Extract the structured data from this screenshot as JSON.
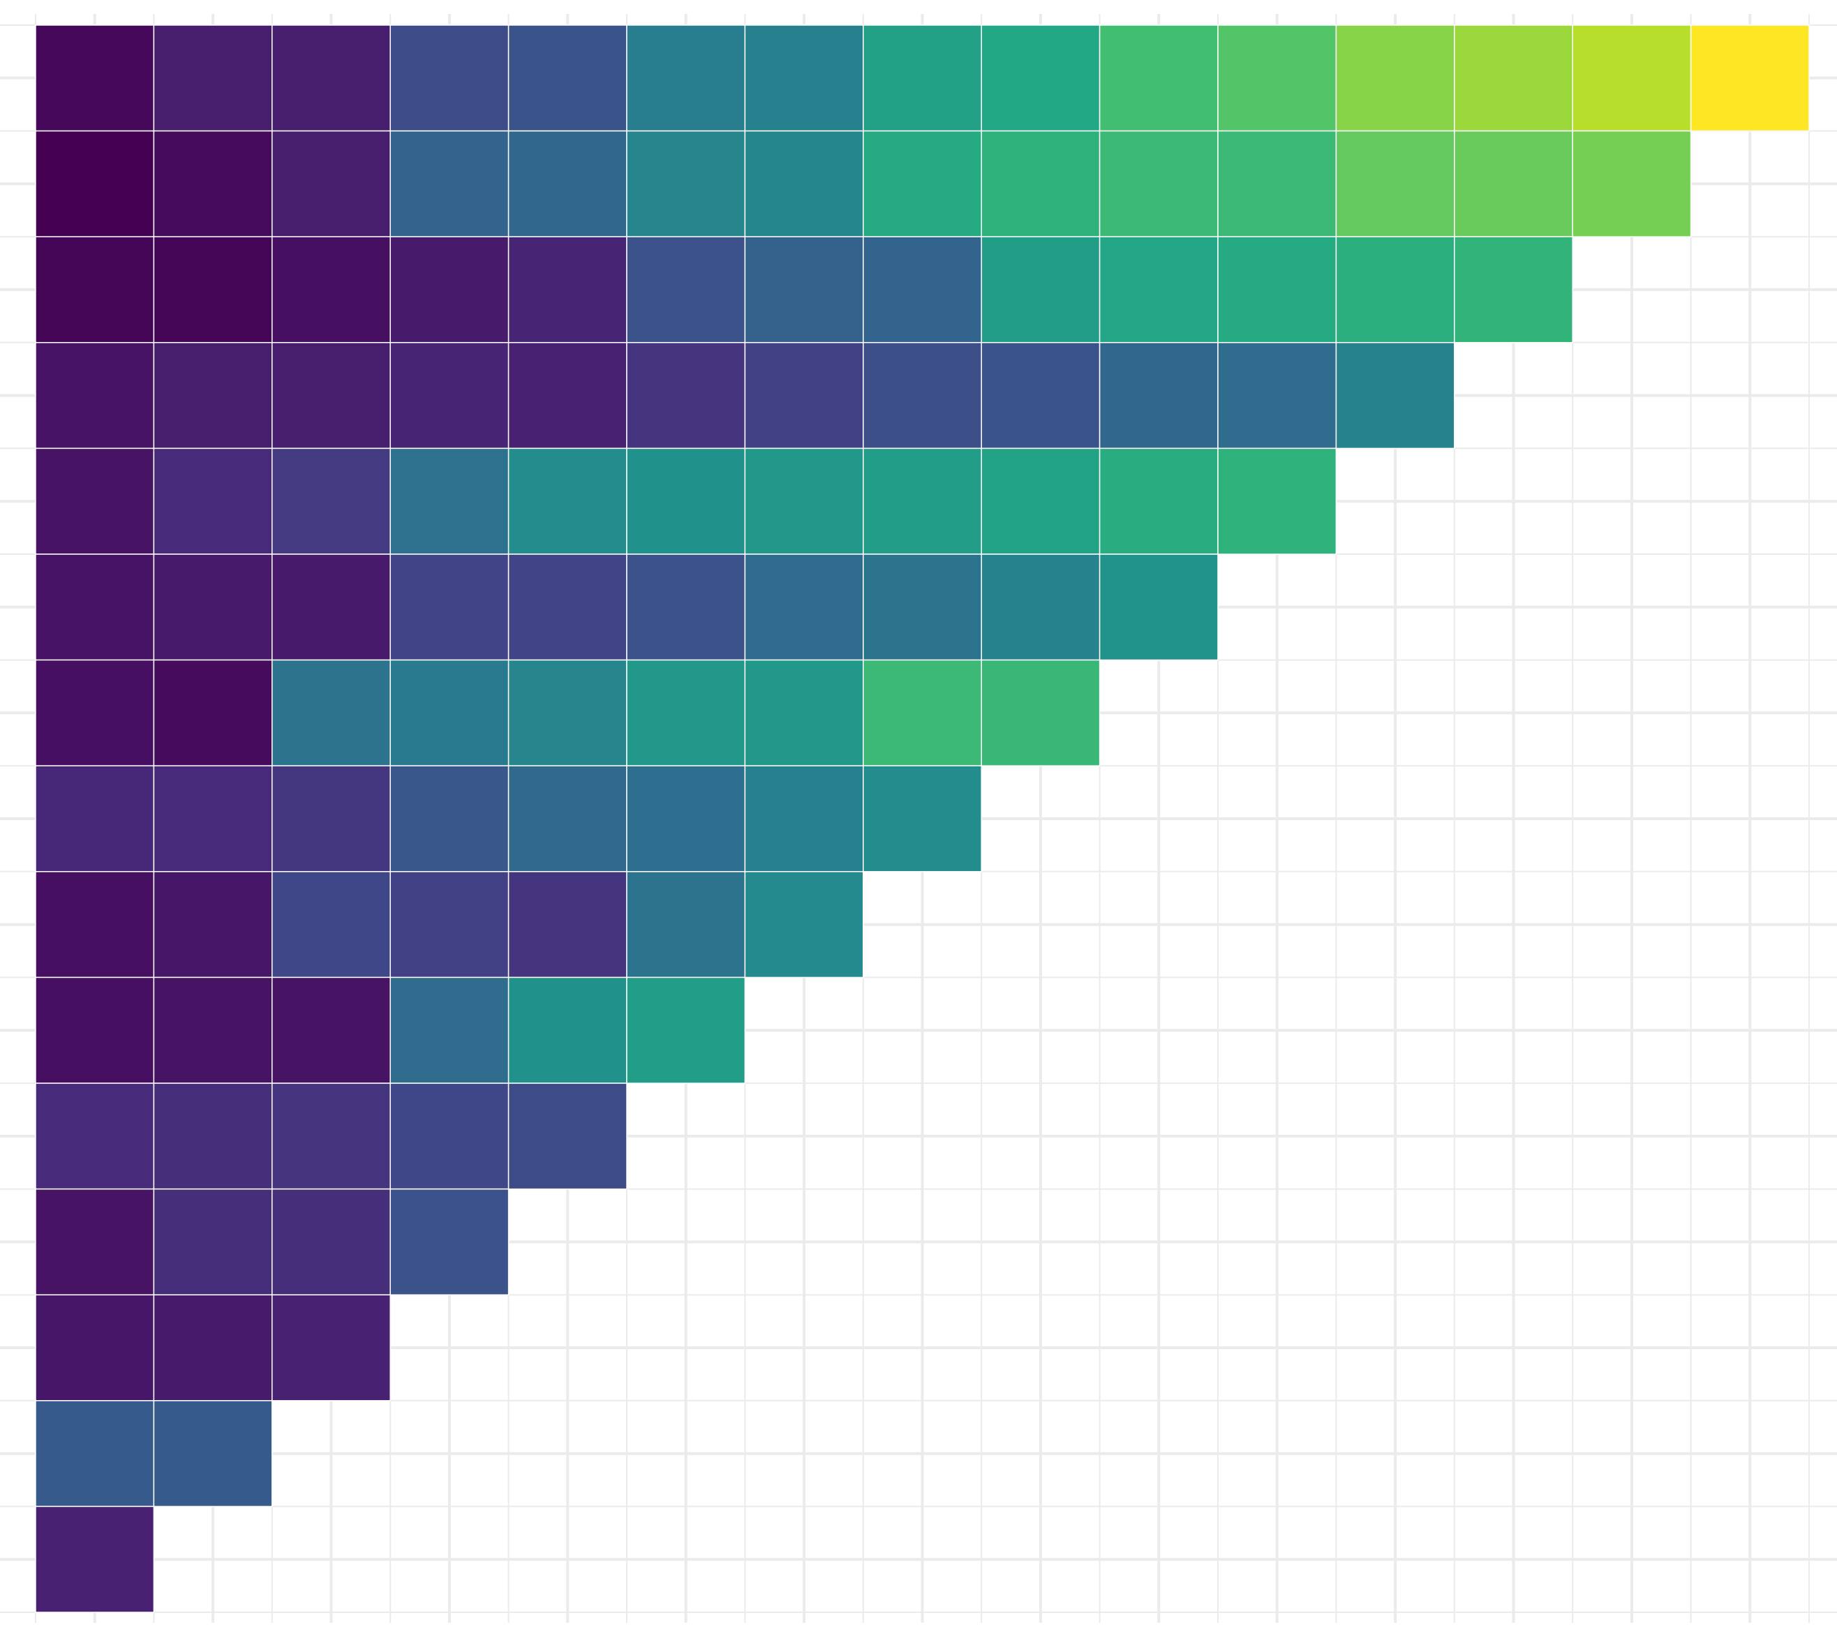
{
  "chart_data": {
    "type": "heatmap",
    "title": "",
    "xlabel": "",
    "ylabel": "",
    "grid": true,
    "legend": "none",
    "color_scale": "viridis",
    "value_range": [
      0,
      1
    ],
    "n_cols": 15,
    "n_rows": 15,
    "rows": [
      [
        0.02,
        0.08,
        0.08,
        0.23,
        0.26,
        0.42,
        0.43,
        0.57,
        0.6,
        0.7,
        0.73,
        0.82,
        0.85,
        0.89,
        1.0
      ],
      [
        0.0,
        0.03,
        0.08,
        0.32,
        0.33,
        0.45,
        0.46,
        0.61,
        0.64,
        0.68,
        0.68,
        0.76,
        0.77,
        0.79
      ],
      [
        0.01,
        0.01,
        0.04,
        0.07,
        0.1,
        0.25,
        0.31,
        0.32,
        0.55,
        0.59,
        0.61,
        0.63,
        0.65
      ],
      [
        0.05,
        0.08,
        0.08,
        0.1,
        0.09,
        0.15,
        0.19,
        0.24,
        0.26,
        0.33,
        0.35,
        0.44
      ],
      [
        0.05,
        0.12,
        0.17,
        0.37,
        0.48,
        0.5,
        0.53,
        0.55,
        0.58,
        0.62,
        0.64
      ],
      [
        0.05,
        0.07,
        0.07,
        0.2,
        0.2,
        0.25,
        0.35,
        0.38,
        0.44,
        0.51
      ],
      [
        0.04,
        0.03,
        0.38,
        0.41,
        0.45,
        0.53,
        0.53,
        0.68,
        0.67
      ],
      [
        0.11,
        0.12,
        0.16,
        0.27,
        0.34,
        0.36,
        0.43,
        0.48
      ],
      [
        0.04,
        0.06,
        0.21,
        0.19,
        0.15,
        0.38,
        0.47
      ],
      [
        0.04,
        0.05,
        0.05,
        0.35,
        0.5,
        0.55
      ],
      [
        0.12,
        0.13,
        0.15,
        0.21,
        0.23
      ],
      [
        0.05,
        0.13,
        0.13,
        0.25
      ],
      [
        0.06,
        0.07,
        0.09
      ],
      [
        0.28,
        0.28
      ],
      [
        0.09
      ]
    ],
    "colors": {
      "grid_line": "#ebebeb",
      "tile_border": "#ffffff",
      "background": "#ffffff"
    }
  }
}
